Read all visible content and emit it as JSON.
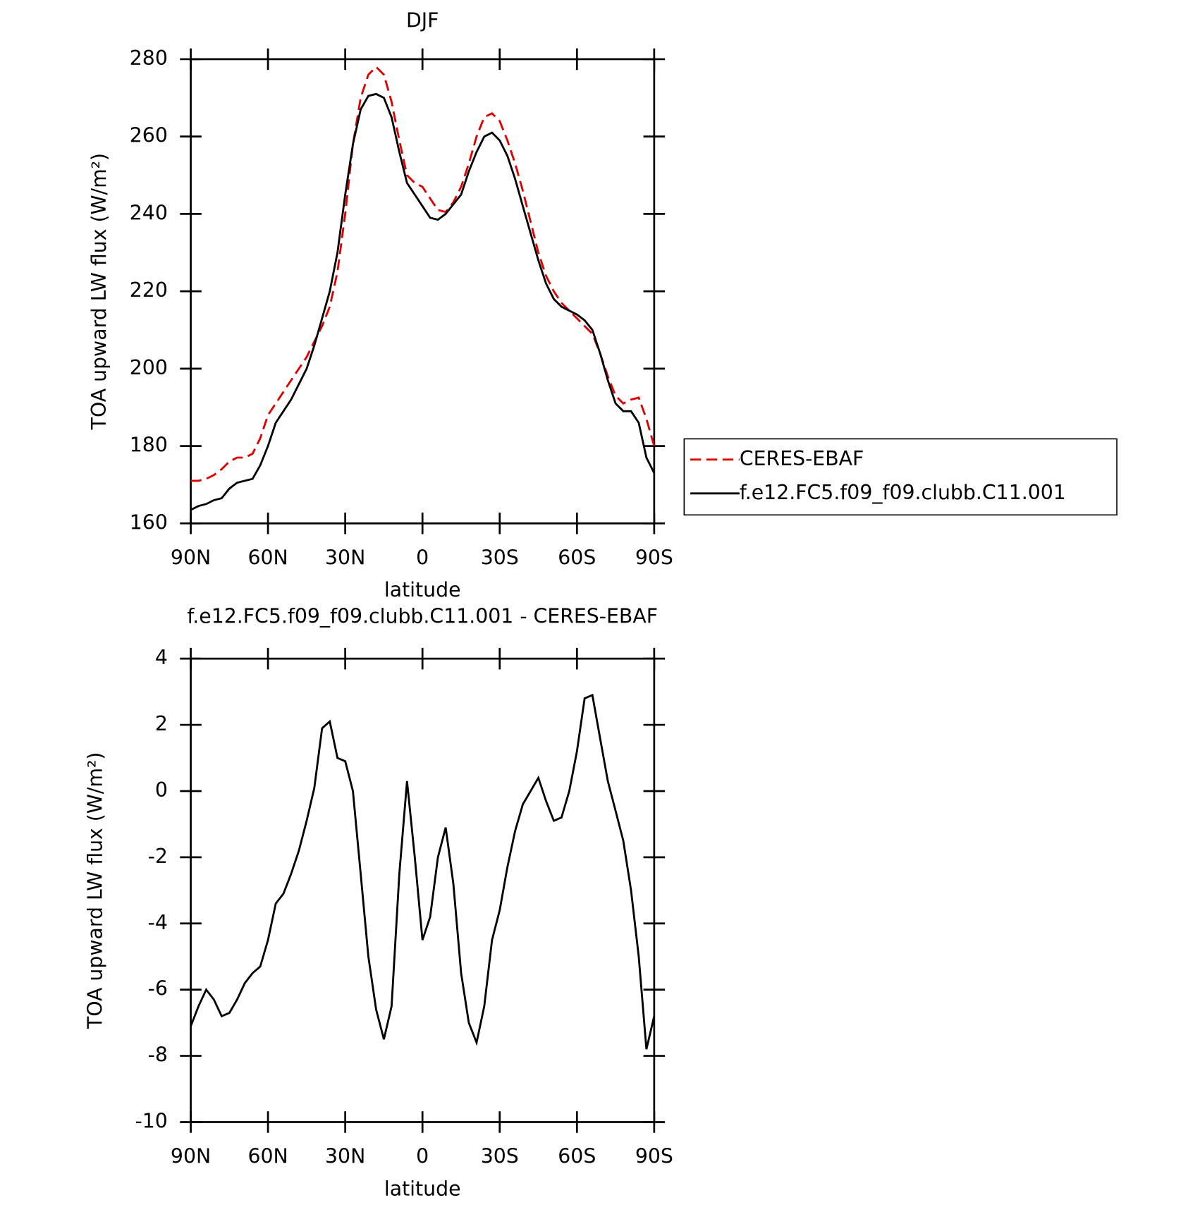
{
  "chart_data": [
    {
      "type": "line",
      "title": "DJF",
      "xlabel": "latitude",
      "ylabel": "TOA upward LW flux (W/m²)",
      "x": [
        90,
        87,
        84,
        81,
        78,
        75,
        72,
        69,
        66,
        63,
        60,
        57,
        54,
        51,
        48,
        45,
        42,
        39,
        36,
        33,
        30,
        27,
        24,
        21,
        18,
        15,
        12,
        9,
        6,
        3,
        0,
        -3,
        -6,
        -9,
        -12,
        -15,
        -18,
        -21,
        -24,
        -27,
        -30,
        -33,
        -36,
        -39,
        -42,
        -45,
        -48,
        -51,
        -54,
        -57,
        -60,
        -63,
        -66,
        -69,
        -72,
        -75,
        -78,
        -81,
        -84,
        -87,
        -90
      ],
      "series": [
        {
          "name": "CERES-EBAF",
          "color": "#e00000",
          "dash": true,
          "values": [
            171,
            171,
            171.5,
            172.5,
            174,
            176,
            177,
            177,
            178,
            182,
            188,
            191,
            194,
            197,
            200,
            203,
            207,
            211,
            216,
            225,
            240,
            258,
            270,
            276,
            278,
            276,
            269,
            259,
            250,
            248,
            247,
            244,
            241,
            240.5,
            243,
            247,
            253,
            260,
            265,
            266,
            264,
            259,
            253,
            246,
            238,
            230,
            224,
            220,
            217,
            215,
            213,
            211,
            209,
            204,
            198,
            193,
            191,
            192,
            192.5,
            187,
            180
          ]
        },
        {
          "name": "f.e12.FC5.f09_f09.clubb.C11.001",
          "color": "#000000",
          "dash": false,
          "values": [
            163.5,
            164.5,
            165,
            166,
            166.5,
            169,
            170.5,
            171,
            171.5,
            175,
            180,
            186,
            189,
            192,
            196,
            200,
            206,
            213,
            220,
            230,
            245,
            258,
            267,
            270.5,
            271,
            270,
            265,
            256,
            248,
            245,
            242,
            239,
            238.5,
            240,
            242.5,
            245,
            251,
            256,
            260,
            261,
            259,
            255,
            249,
            242,
            235,
            228,
            222,
            218,
            216,
            215,
            214,
            212.5,
            210,
            204,
            197,
            191,
            189,
            189,
            186,
            177,
            173
          ]
        }
      ],
      "xlim": [
        90,
        -90
      ],
      "xticks": [
        {
          "value": 90,
          "label": "90N"
        },
        {
          "value": 60,
          "label": "60N"
        },
        {
          "value": 30,
          "label": "30N"
        },
        0,
        {
          "value": -30,
          "label": "30S"
        },
        {
          "value": -60,
          "label": "60S"
        },
        {
          "value": -90,
          "label": "90S"
        }
      ],
      "ylim": [
        160,
        280
      ],
      "yticks": [
        160,
        180,
        200,
        220,
        240,
        260,
        280
      ],
      "legend": "right"
    },
    {
      "type": "line",
      "title": "f.e12.FC5.f09_f09.clubb.C11.001 - CERES-EBAF",
      "xlabel": "latitude",
      "ylabel": "TOA upward LW flux (W/m²)",
      "x": [
        90,
        87,
        84,
        81,
        78,
        75,
        72,
        69,
        66,
        63,
        60,
        57,
        54,
        51,
        48,
        45,
        42,
        39,
        36,
        33,
        30,
        27,
        24,
        21,
        18,
        15,
        12,
        9,
        6,
        3,
        0,
        -3,
        -6,
        -9,
        -12,
        -15,
        -18,
        -21,
        -24,
        -27,
        -30,
        -33,
        -36,
        -39,
        -42,
        -45,
        -48,
        -51,
        -54,
        -57,
        -60,
        -63,
        -66,
        -69,
        -72,
        -75,
        -78,
        -81,
        -84,
        -87,
        -90
      ],
      "series": [
        {
          "color": "#000000",
          "dash": false,
          "values": [
            -7.1,
            -6.5,
            -6.0,
            -6.3,
            -6.8,
            -6.7,
            -6.3,
            -5.8,
            -5.5,
            -5.3,
            -4.5,
            -3.4,
            -3.1,
            -2.5,
            -1.8,
            -0.9,
            0.1,
            1.9,
            2.1,
            1.0,
            0.9,
            0.0,
            -2.5,
            -5.0,
            -6.6,
            -7.5,
            -6.5,
            -2.5,
            0.3,
            -2.0,
            -4.5,
            -3.8,
            -2.0,
            -1.1,
            -2.8,
            -5.5,
            -7.0,
            -7.6,
            -6.5,
            -4.5,
            -3.6,
            -2.3,
            -1.2,
            -0.4,
            0.0,
            0.4,
            -0.3,
            -0.9,
            -0.8,
            0.0,
            1.2,
            2.8,
            2.9,
            1.6,
            0.3,
            -0.6,
            -1.5,
            -3.0,
            -5.0,
            -7.8,
            -6.8
          ]
        }
      ],
      "xlim": [
        90,
        -90
      ],
      "xticks": [
        {
          "value": 90,
          "label": "90N"
        },
        {
          "value": 60,
          "label": "60N"
        },
        {
          "value": 30,
          "label": "30N"
        },
        0,
        {
          "value": -30,
          "label": "30S"
        },
        {
          "value": -60,
          "label": "60S"
        },
        {
          "value": -90,
          "label": "90S"
        }
      ],
      "ylim": [
        -10,
        4
      ],
      "yticks": [
        -10,
        -8,
        -6,
        -4,
        -2,
        0,
        2,
        4
      ]
    }
  ]
}
